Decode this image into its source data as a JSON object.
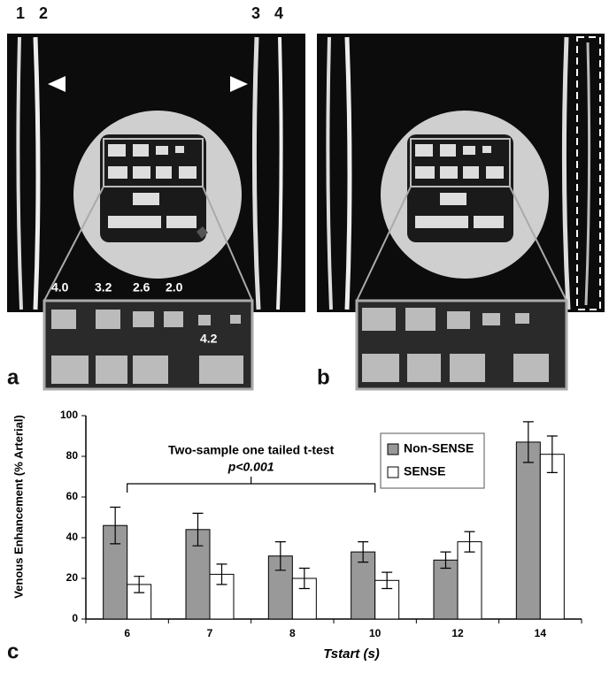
{
  "figure": {
    "panel_labels": [
      "a",
      "b",
      "c"
    ],
    "image_a": {
      "vessel_labels": [
        "1",
        "2",
        "3",
        "4"
      ],
      "resolution_labels": [
        "4.0",
        "3.2",
        "2.6",
        "2.0"
      ],
      "inset_label": "4.2"
    }
  },
  "chart_data": {
    "type": "bar",
    "y_label": "Venous Enhancement (% Arterial)",
    "x_label": "Tstart (s)",
    "annotation": "Two-sample one tailed t-test",
    "annotation_p": "p<0.001",
    "categories": [
      "6",
      "7",
      "8",
      "10",
      "12",
      "14"
    ],
    "series": [
      {
        "name": "Non-SENSE",
        "color": "#999999",
        "values": [
          46,
          44,
          31,
          33,
          29,
          87
        ],
        "errors": [
          9,
          8,
          7,
          5,
          4,
          10
        ]
      },
      {
        "name": "SENSE",
        "color": "#ffffff",
        "values": [
          17,
          22,
          20,
          19,
          38,
          81
        ],
        "errors": [
          4,
          5,
          5,
          4,
          5,
          9
        ]
      }
    ],
    "ylim": [
      0,
      100
    ],
    "yticks": [
      0,
      20,
      40,
      60,
      80,
      100
    ],
    "legend": "top-right"
  }
}
